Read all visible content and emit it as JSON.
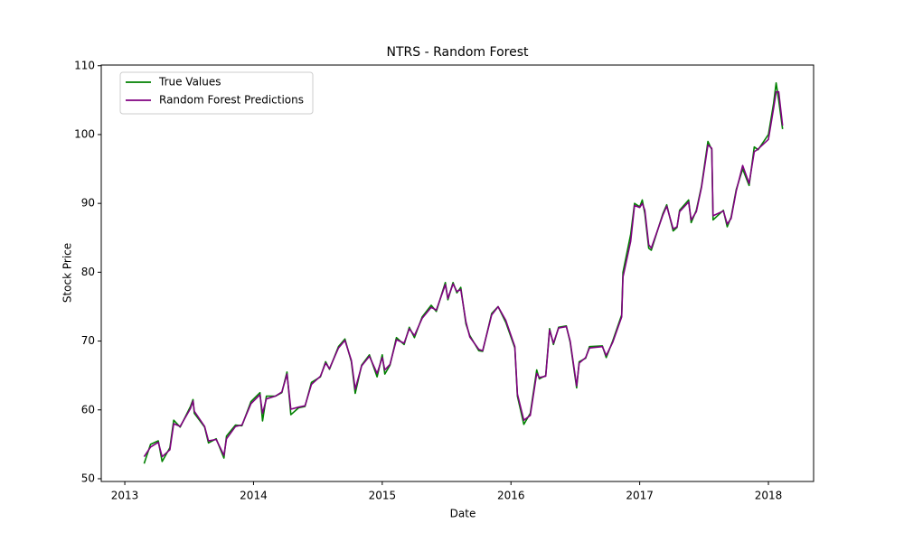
{
  "chart_data": {
    "type": "line",
    "title": "NTRS - Random Forest",
    "x_label": "Date",
    "y_label": "Stock Price",
    "xlim": [
      2012.817,
      2018.351
    ],
    "xticks": [
      2013,
      2014,
      2015,
      2016,
      2017,
      2018
    ],
    "ylim": [
      49.6,
      110.1
    ],
    "yticks": [
      50,
      60,
      70,
      80,
      90,
      100,
      110
    ],
    "grid": false,
    "legend": "upper left",
    "x": [
      2013.15,
      2013.2,
      2013.26,
      2013.29,
      2013.35,
      2013.38,
      2013.43,
      2013.51,
      2013.53,
      2013.54,
      2013.62,
      2013.65,
      2013.71,
      2013.77,
      2013.79,
      2013.86,
      2013.91,
      2013.98,
      2014.05,
      2014.07,
      2014.1,
      2014.17,
      2014.22,
      2014.26,
      2014.29,
      2014.35,
      2014.4,
      2014.45,
      2014.52,
      2014.56,
      2014.59,
      2014.66,
      2014.71,
      2014.76,
      2014.79,
      2014.84,
      2014.9,
      2014.96,
      2015.0,
      2015.02,
      2015.06,
      2015.11,
      2015.17,
      2015.21,
      2015.25,
      2015.31,
      2015.38,
      2015.42,
      2015.49,
      2015.51,
      2015.55,
      2015.58,
      2015.61,
      2015.65,
      2015.68,
      2015.75,
      2015.78,
      2015.85,
      2015.9,
      2015.96,
      2016.03,
      2016.05,
      2016.1,
      2016.15,
      2016.2,
      2016.22,
      2016.27,
      2016.3,
      2016.33,
      2016.37,
      2016.43,
      2016.46,
      2016.51,
      2016.53,
      2016.58,
      2016.61,
      2016.71,
      2016.74,
      2016.79,
      2016.86,
      2016.87,
      2016.93,
      2016.96,
      2017.0,
      2017.02,
      2017.04,
      2017.07,
      2017.09,
      2017.18,
      2017.21,
      2017.26,
      2017.29,
      2017.31,
      2017.38,
      2017.4,
      2017.44,
      2017.48,
      2017.53,
      2017.56,
      2017.57,
      2017.65,
      2017.68,
      2017.71,
      2017.75,
      2017.8,
      2017.85,
      2017.89,
      2017.92,
      2018.0,
      2018.04,
      2018.06,
      2018.08,
      2018.11
    ],
    "series": [
      {
        "name": "True Values",
        "color": "#008000",
        "values": [
          52.2,
          55,
          55.5,
          52.5,
          54.5,
          58.5,
          57.5,
          60.5,
          61.5,
          59.5,
          57.5,
          55.2,
          55.8,
          53,
          56.2,
          57.8,
          57.7,
          61.2,
          62.5,
          58.4,
          62,
          62,
          62.5,
          65.5,
          59.3,
          60.3,
          60.5,
          64,
          64.8,
          67,
          65.9,
          69.2,
          70.3,
          67,
          62.4,
          66.5,
          68,
          64.8,
          68,
          65.2,
          66.5,
          70.5,
          69.5,
          72,
          70.5,
          73.5,
          75.2,
          74.3,
          78.5,
          76,
          78.5,
          77,
          77.8,
          72.5,
          70.8,
          68.6,
          68.5,
          74,
          75,
          72.7,
          69,
          62,
          57.9,
          59.5,
          65.8,
          64.5,
          65,
          71.8,
          69.5,
          72,
          72.2,
          69.8,
          63.2,
          67,
          67.5,
          69.2,
          69.3,
          67.6,
          70,
          73.8,
          80,
          85.5,
          90,
          89.5,
          90.5,
          88.5,
          83.5,
          83.2,
          88.5,
          89.8,
          86,
          86.5,
          89,
          90.5,
          87.2,
          89,
          92.5,
          99,
          97.8,
          87.6,
          89,
          86.6,
          88,
          92,
          95,
          92.6,
          98.2,
          97.8,
          100,
          104.5,
          107.5,
          105,
          100.8
        ]
      },
      {
        "name": "Random Forest Predictions",
        "color": "#800080",
        "values": [
          53.2,
          54.6,
          55.3,
          53.2,
          54.2,
          58,
          57.6,
          60.2,
          61.3,
          59.8,
          57.6,
          55.5,
          55.7,
          53.4,
          55.8,
          57.6,
          57.8,
          60.9,
          62.2,
          59.5,
          61.6,
          62,
          62.6,
          65.2,
          60.1,
          60.4,
          60.6,
          63.7,
          64.9,
          66.8,
          66,
          69,
          70.1,
          67.2,
          63,
          66.4,
          67.8,
          65.3,
          67.6,
          65.8,
          66.6,
          70.2,
          69.7,
          71.8,
          70.8,
          73.3,
          74.9,
          74.5,
          78.2,
          76.2,
          78.3,
          77.2,
          77.5,
          72.8,
          70.6,
          68.8,
          68.6,
          73.8,
          75,
          73,
          69.2,
          62.3,
          58.5,
          59.2,
          65.3,
          64.7,
          64.9,
          71.6,
          69.7,
          71.9,
          72.1,
          70,
          63.5,
          66.8,
          67.6,
          69,
          69.2,
          67.9,
          69.8,
          73.5,
          79.3,
          84.5,
          89.7,
          89.4,
          90,
          89,
          84,
          83.5,
          88.3,
          89.6,
          86.3,
          86.6,
          88.8,
          90.2,
          87.6,
          88.8,
          92.3,
          98.5,
          98,
          88.2,
          88.9,
          87,
          87.8,
          91.8,
          95.5,
          92.9,
          97.5,
          97.9,
          99.3,
          103.8,
          106.2,
          106.2,
          101.3
        ]
      }
    ]
  }
}
